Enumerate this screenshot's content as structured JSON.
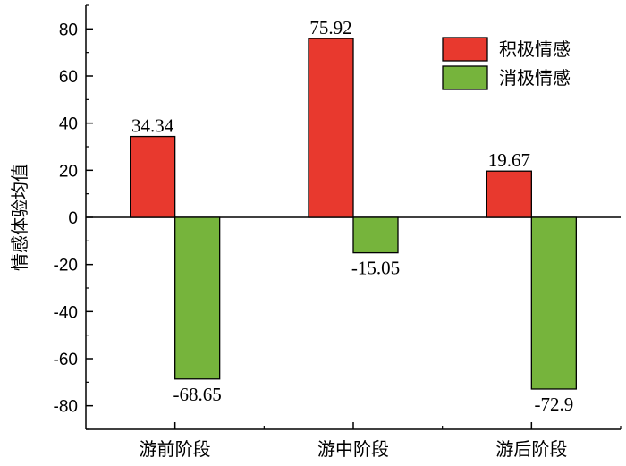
{
  "chart_data": {
    "type": "bar",
    "categories": [
      "游前阶段",
      "游中阶段",
      "游后阶段"
    ],
    "series": [
      {
        "name": "积极情感",
        "values": [
          34.34,
          75.92,
          19.67
        ],
        "value_labels": [
          "34.34",
          "75.92",
          "19.67"
        ],
        "color": "#e8392e"
      },
      {
        "name": "消极情感",
        "values": [
          -68.65,
          -15.05,
          -72.9
        ],
        "value_labels": [
          "-68.65",
          "-15.05",
          "-72.9"
        ],
        "color": "#76b43c"
      }
    ],
    "title": "",
    "xlabel": "",
    "ylabel": "情感体验均值",
    "ylim": [
      -90,
      90
    ],
    "yticks": [
      80,
      60,
      40,
      20,
      0,
      -20,
      -40,
      -60,
      -80
    ],
    "ytick_labels": [
      "80",
      "60",
      "40",
      "20",
      "0",
      "-20",
      "-40",
      "-60",
      "-80"
    ],
    "grid": false,
    "legend_position": "top-right"
  }
}
